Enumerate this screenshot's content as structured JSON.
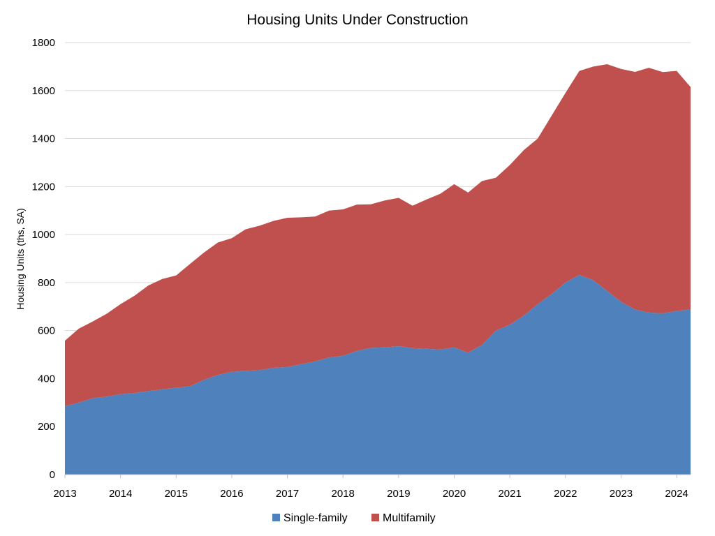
{
  "chart_data": {
    "type": "area",
    "stacked": true,
    "title": "Housing Units Under Construction",
    "xlabel": "",
    "ylabel": "Housing Units (ths, SA)",
    "ylim": [
      0,
      1800
    ],
    "xlim": [
      2013.0,
      2024.25
    ],
    "yticks": [
      "0",
      "200",
      "400",
      "600",
      "800",
      "1000",
      "1200",
      "1400",
      "1600",
      "1800"
    ],
    "xticks": [
      "2013",
      "2014",
      "2015",
      "2016",
      "2017",
      "2018",
      "2019",
      "2020",
      "2021",
      "2022",
      "2023",
      "2024"
    ],
    "grid": "horizontal",
    "legend_position": "bottom",
    "x": [
      2013.0,
      2013.25,
      2013.5,
      2013.75,
      2014.0,
      2014.25,
      2014.5,
      2014.75,
      2015.0,
      2015.25,
      2015.5,
      2015.75,
      2016.0,
      2016.25,
      2016.5,
      2016.75,
      2017.0,
      2017.25,
      2017.5,
      2017.75,
      2018.0,
      2018.25,
      2018.5,
      2018.75,
      2019.0,
      2019.25,
      2019.5,
      2019.75,
      2020.0,
      2020.25,
      2020.5,
      2020.75,
      2021.0,
      2021.25,
      2021.5,
      2021.75,
      2022.0,
      2022.25,
      2022.5,
      2022.75,
      2023.0,
      2023.25,
      2023.5,
      2023.75,
      2024.0,
      2024.25
    ],
    "series": [
      {
        "name": "Single-family",
        "color": "#4f81bd",
        "values": [
          285,
          300,
          318,
          325,
          335,
          340,
          348,
          355,
          362,
          368,
          395,
          415,
          428,
          432,
          435,
          445,
          448,
          460,
          472,
          488,
          495,
          515,
          528,
          530,
          535,
          527,
          524,
          521,
          530,
          508,
          540,
          600,
          625,
          662,
          710,
          752,
          800,
          832,
          810,
          765,
          720,
          688,
          675,
          672,
          682,
          688
        ]
      },
      {
        "name": "Multifamily",
        "color": "#c0504d",
        "values": [
          273,
          308,
          320,
          345,
          375,
          405,
          440,
          460,
          468,
          510,
          530,
          552,
          557,
          590,
          602,
          612,
          622,
          612,
          603,
          612,
          610,
          610,
          598,
          612,
          618,
          593,
          622,
          649,
          680,
          667,
          683,
          637,
          665,
          690,
          690,
          743,
          790,
          850,
          890,
          945,
          970,
          990,
          1020,
          1005,
          1000,
          927
        ]
      }
    ]
  }
}
